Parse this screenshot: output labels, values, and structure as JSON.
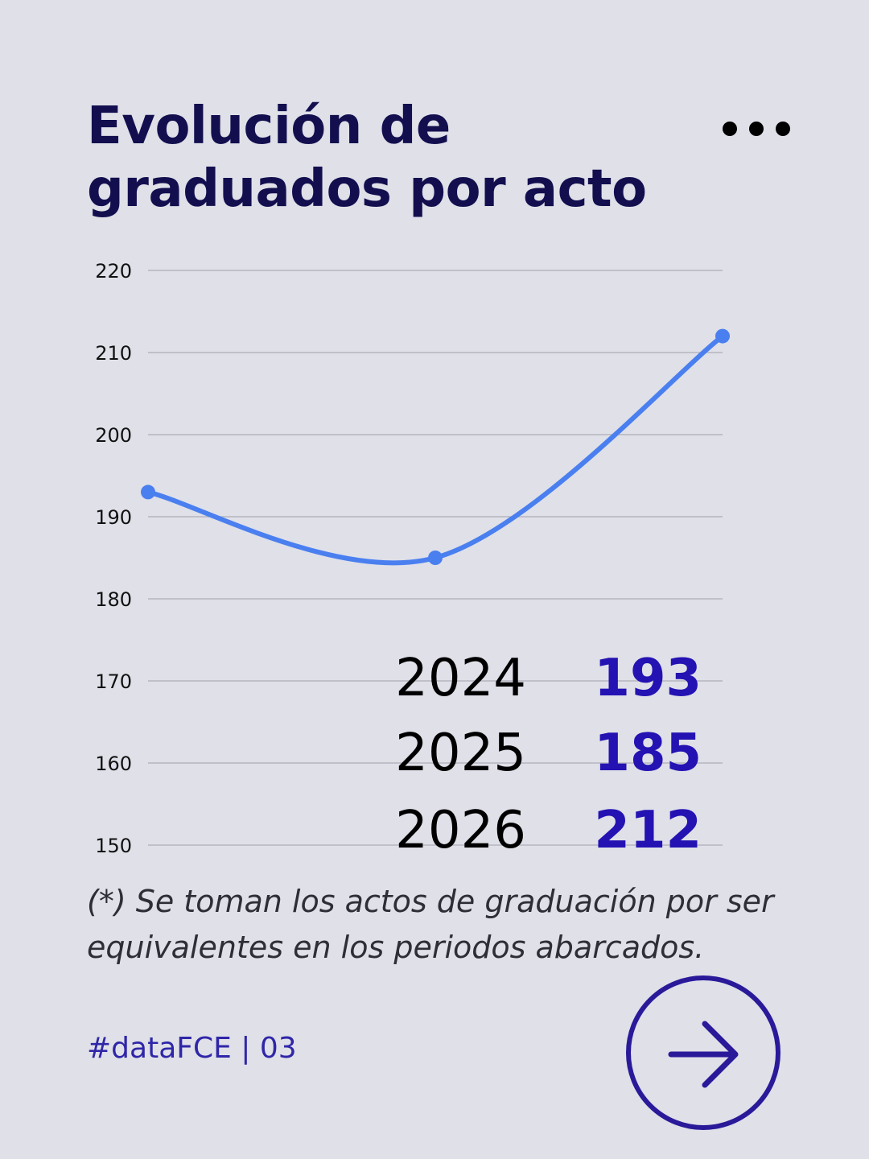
{
  "title_line1": "Evolución de",
  "title_line2": "graduados por acto",
  "more_icon": "more-dots-icon",
  "note": "(*) Se toman los actos de graduación por ser equivalentes en los periodos abarcados.",
  "tag": "#dataFCE | 03",
  "next_icon": "arrow-right-icon",
  "colors": {
    "line": "#4a7ff0",
    "value": "#2412b3",
    "title": "#130f4f",
    "circle": "#2a1a9a"
  },
  "chart_data": {
    "type": "line",
    "categories": [
      "2024",
      "2025",
      "2026"
    ],
    "series": [
      {
        "values": [
          193,
          185,
          212
        ]
      }
    ],
    "ylim": [
      150,
      220
    ],
    "yticks": [
      "220",
      "210",
      "200",
      "190",
      "180",
      "170",
      "160",
      "150"
    ],
    "grid": true,
    "table": [
      {
        "year": "2024",
        "value": "193"
      },
      {
        "year": "2025",
        "value": "185"
      },
      {
        "year": "2026",
        "value": "212"
      }
    ]
  }
}
